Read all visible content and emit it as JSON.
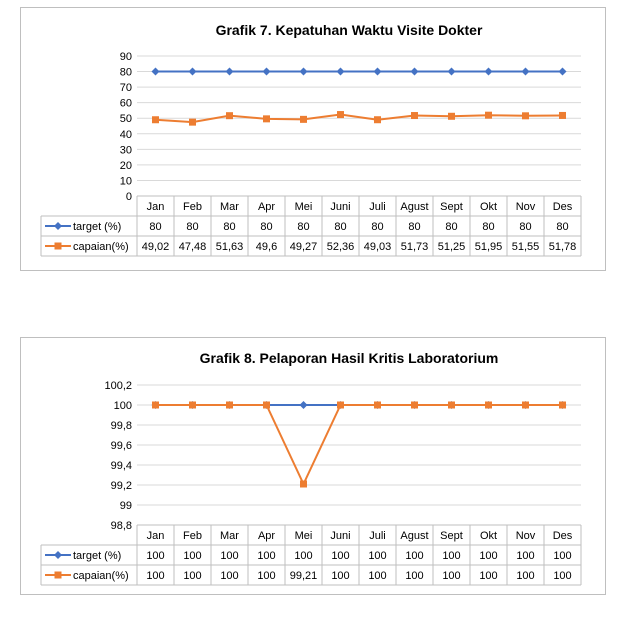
{
  "chart_data": [
    {
      "type": "line",
      "title": "Grafik 7. Kepatuhan Waktu Visite Dokter",
      "categories": [
        "Jan",
        "Feb",
        "Mar",
        "Apr",
        "Mei",
        "Juni",
        "Juli",
        "Agust",
        "Sept",
        "Okt",
        "Nov",
        "Des"
      ],
      "yticks": [
        "0",
        "10",
        "20",
        "30",
        "40",
        "50",
        "60",
        "70",
        "80",
        "90"
      ],
      "ylim": [
        0,
        90
      ],
      "grid": true,
      "legend": "data-table-left",
      "series": [
        {
          "name": "target (%)",
          "color": "#4472C4",
          "marker": "diamond",
          "values": [
            80,
            80,
            80,
            80,
            80,
            80,
            80,
            80,
            80,
            80,
            80,
            80
          ],
          "labels": [
            "80",
            "80",
            "80",
            "80",
            "80",
            "80",
            "80",
            "80",
            "80",
            "80",
            "80",
            "80"
          ]
        },
        {
          "name": "capaian(%)",
          "color": "#ED7D31",
          "marker": "square",
          "values": [
            49.02,
            47.48,
            51.63,
            49.6,
            49.27,
            52.36,
            49.03,
            51.73,
            51.25,
            51.95,
            51.55,
            51.78
          ],
          "labels": [
            "49,02",
            "47,48",
            "51,63",
            "49,6",
            "49,27",
            "52,36",
            "49,03",
            "51,73",
            "51,25",
            "51,95",
            "51,55",
            "51,78"
          ]
        }
      ]
    },
    {
      "type": "line",
      "title": "Grafik 8. Pelaporan Hasil Kritis Laboratorium",
      "categories": [
        "Jan",
        "Feb",
        "Mar",
        "Apr",
        "Mei",
        "Juni",
        "Juli",
        "Agust",
        "Sept",
        "Okt",
        "Nov",
        "Des"
      ],
      "yticks": [
        "98,8",
        "99",
        "99,2",
        "99,4",
        "99,6",
        "99,8",
        "100",
        "100,2"
      ],
      "ylim": [
        98.8,
        100.2
      ],
      "grid": true,
      "legend": "data-table-left",
      "series": [
        {
          "name": "target (%)",
          "color": "#4472C4",
          "marker": "diamond",
          "values": [
            100,
            100,
            100,
            100,
            100,
            100,
            100,
            100,
            100,
            100,
            100,
            100
          ],
          "labels": [
            "100",
            "100",
            "100",
            "100",
            "100",
            "100",
            "100",
            "100",
            "100",
            "100",
            "100",
            "100"
          ]
        },
        {
          "name": "capaian(%)",
          "color": "#ED7D31",
          "marker": "square",
          "values": [
            100,
            100,
            100,
            100,
            99.21,
            100,
            100,
            100,
            100,
            100,
            100,
            100
          ],
          "labels": [
            "100",
            "100",
            "100",
            "100",
            "99,21",
            "100",
            "100",
            "100",
            "100",
            "100",
            "100",
            "100"
          ]
        }
      ]
    }
  ]
}
